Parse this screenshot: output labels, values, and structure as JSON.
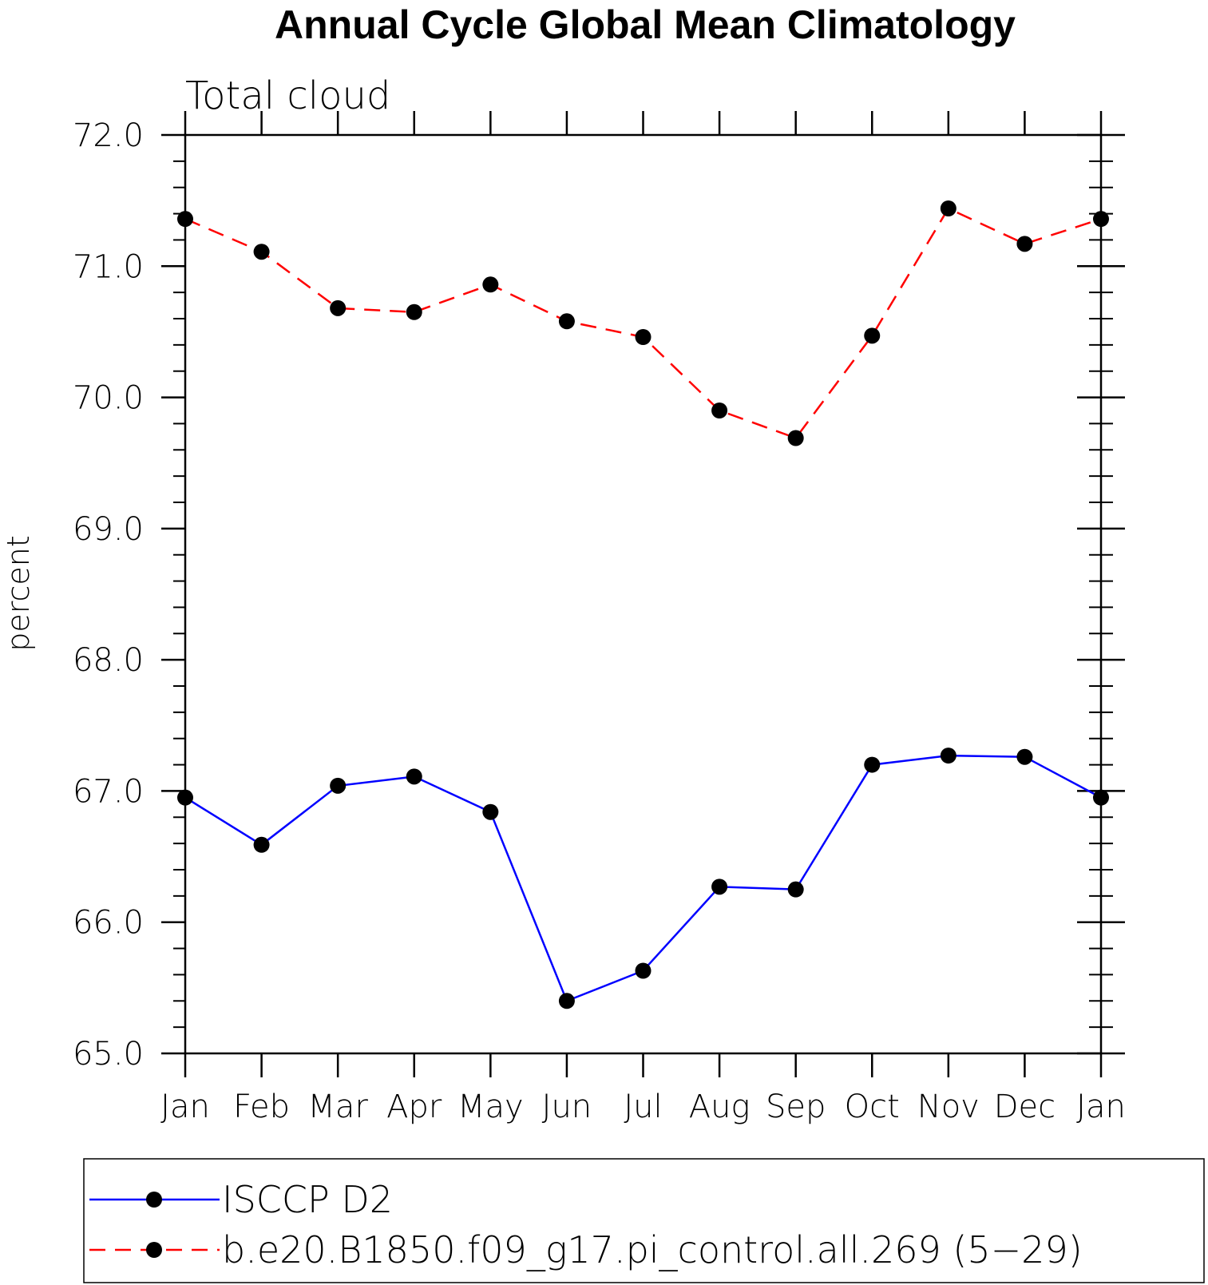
{
  "chart_data": {
    "type": "line",
    "title": "Annual Cycle Global Mean Climatology",
    "subtitle": "Total cloud",
    "xlabel": "",
    "ylabel": "percent",
    "categories": [
      "Jan",
      "Feb",
      "Mar",
      "Apr",
      "May",
      "Jun",
      "Jul",
      "Aug",
      "Sep",
      "Oct",
      "Nov",
      "Dec",
      "Jan"
    ],
    "ylim": [
      65.0,
      72.0
    ],
    "yticks": [
      "65.0",
      "66.0",
      "67.0",
      "68.0",
      "69.0",
      "70.0",
      "71.0",
      "72.0"
    ],
    "grid": false,
    "legend_position": "bottom",
    "series": [
      {
        "name": "ISCCP D2",
        "color": "#0000ff",
        "dash": "solid",
        "marker": "filled-circle",
        "values": [
          66.95,
          66.59,
          67.04,
          67.11,
          66.84,
          65.4,
          65.63,
          66.27,
          66.25,
          67.2,
          67.27,
          67.26,
          66.95
        ]
      },
      {
        "name": "b.e20.B1850.f09_g17.pi_control.all.269 (5−29)",
        "color": "#ff0000",
        "dash": "dashed",
        "marker": "filled-circle",
        "values": [
          71.36,
          71.11,
          70.68,
          70.65,
          70.86,
          70.58,
          70.46,
          69.9,
          69.69,
          70.47,
          71.44,
          71.17,
          71.36
        ]
      }
    ]
  }
}
